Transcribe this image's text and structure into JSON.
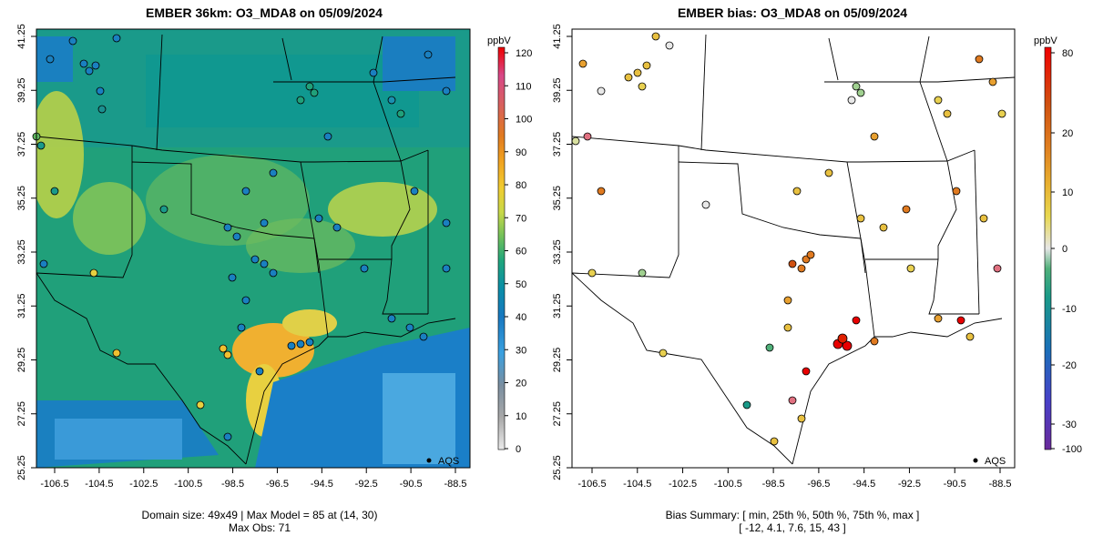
{
  "left_panel": {
    "title": "EMBER 36km: O3_MDA8 on 05/09/2024",
    "footer_line1": "Domain size: 49x49 | Max Model = 85 at (14, 30)",
    "footer_line2": "Max Obs: 71",
    "legend_unit": "ppbV",
    "legend_ticks": [
      "120",
      "110",
      "100",
      "90",
      "80",
      "70",
      "60",
      "50",
      "40",
      "30",
      "20",
      "10",
      "0"
    ],
    "point_legend": "AQS"
  },
  "right_panel": {
    "title": "EMBER bias: O3_MDA8 on 05/09/2024",
    "footer_line1": "Bias Summary: [ min, 25th %, 50th %, 75th %, max ]",
    "footer_line2": "[ -12,  4.1,  7.6,  15,  43 ]",
    "legend_unit": "ppbV",
    "legend_ticks": [
      "80",
      "20",
      "10",
      "0",
      "-10",
      "-20",
      "-30",
      "-100"
    ],
    "point_legend": "AQS"
  },
  "axes": {
    "x_ticks": [
      "-106.5",
      "-104.5",
      "-102.5",
      "-100.5",
      "-98.5",
      "-96.5",
      "-94.5",
      "-92.5",
      "-90.5",
      "-88.5"
    ],
    "y_ticks": [
      "41.25",
      "39.25",
      "37.25",
      "35.25",
      "33.25",
      "31.25",
      "29.25",
      "27.25",
      "25.25"
    ]
  },
  "colors": {
    "conc_scale": [
      "#e8e8e8",
      "#b0b0b0",
      "#6a8ca8",
      "#3aa6dc",
      "#1e7fc0",
      "#1098a0",
      "#20a880",
      "#6cbf5c",
      "#c6d848",
      "#f0d030",
      "#f0a020",
      "#e07020",
      "#d04848",
      "#d84080",
      "#e00000"
    ],
    "bias_scale": [
      "#6a2a9a",
      "#4a40c8",
      "#1a6ab8",
      "#1a9a88",
      "#4ab07a",
      "#e8e8e8",
      "#e8d050",
      "#e8b030",
      "#e08020",
      "#d05010",
      "#e80000"
    ]
  }
}
